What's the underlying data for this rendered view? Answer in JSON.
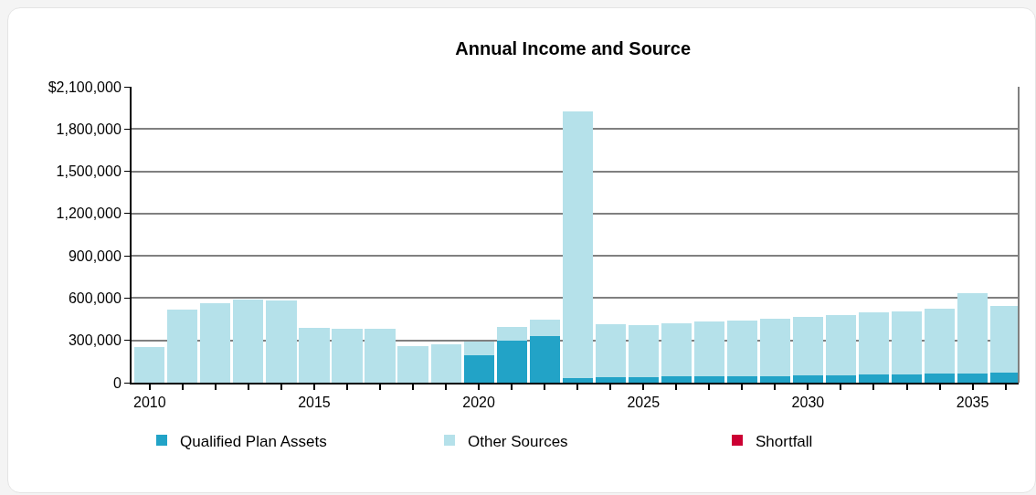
{
  "chart_data": {
    "type": "bar",
    "title": "Annual Income and Source",
    "stacked": true,
    "x": [
      2010,
      2011,
      2012,
      2013,
      2014,
      2015,
      2016,
      2017,
      2018,
      2019,
      2020,
      2021,
      2022,
      2023,
      2024,
      2025,
      2026,
      2027,
      2028,
      2029,
      2030,
      2031,
      2032,
      2033,
      2034,
      2035,
      2036
    ],
    "series": [
      {
        "name": "Qualified Plan Assets",
        "color": "#22a3c7",
        "values": [
          0,
          0,
          0,
          0,
          0,
          0,
          0,
          0,
          0,
          0,
          195000,
          300000,
          330000,
          30000,
          37000,
          37000,
          43000,
          43000,
          43000,
          43000,
          50000,
          50000,
          57000,
          57000,
          63000,
          63000,
          70000
        ]
      },
      {
        "name": "Other Sources",
        "color": "#b5e1ea",
        "values": [
          252000,
          520000,
          565000,
          593000,
          585000,
          389000,
          383000,
          383000,
          259000,
          272000,
          96000,
          96000,
          118000,
          1892000,
          378000,
          372000,
          379000,
          392000,
          398000,
          411000,
          417000,
          430000,
          443000,
          450000,
          463000,
          574000,
          476000
        ]
      },
      {
        "name": "Shortfall",
        "color": "#cc0033",
        "values": [
          0,
          0,
          0,
          0,
          0,
          0,
          0,
          0,
          0,
          0,
          0,
          0,
          0,
          0,
          0,
          0,
          0,
          0,
          0,
          0,
          0,
          0,
          0,
          0,
          0,
          0,
          0
        ]
      }
    ],
    "xlim": [
      2009.45,
      2036.4
    ],
    "xticks": [
      2010,
      {
        "value": 2011,
        "label": null
      },
      {
        "value": 2012,
        "label": null
      },
      {
        "value": 2013,
        "label": null
      },
      {
        "value": 2014,
        "label": null
      },
      2015,
      {
        "value": 2016,
        "label": null
      },
      {
        "value": 2017,
        "label": null
      },
      {
        "value": 2018,
        "label": null
      },
      {
        "value": 2019,
        "label": null
      },
      2020,
      {
        "value": 2021,
        "label": null
      },
      {
        "value": 2022,
        "label": null
      },
      {
        "value": 2023,
        "label": null
      },
      {
        "value": 2024,
        "label": null
      },
      2025,
      {
        "value": 2026,
        "label": null
      },
      {
        "value": 2027,
        "label": null
      },
      {
        "value": 2028,
        "label": null
      },
      {
        "value": 2029,
        "label": null
      },
      2030,
      {
        "value": 2031,
        "label": null
      },
      {
        "value": 2032,
        "label": null
      },
      {
        "value": 2033,
        "label": null
      },
      {
        "value": 2034,
        "label": null
      },
      2035,
      {
        "value": 2036,
        "label": null
      }
    ],
    "ylim": [
      0,
      2100000
    ],
    "yticks": [
      0,
      {
        "value": 300000,
        "label": "300,000"
      },
      {
        "value": 600000,
        "label": "600,000"
      },
      {
        "value": 900000,
        "label": "900,000"
      },
      {
        "value": 1200000,
        "label": "1,200,000"
      },
      {
        "value": 1500000,
        "label": "1,500,000"
      },
      {
        "value": 1800000,
        "label": "1,800,000"
      },
      {
        "value": 2100000,
        "label": "$2,100,000"
      }
    ],
    "grid": "y",
    "legend": "bottom"
  }
}
